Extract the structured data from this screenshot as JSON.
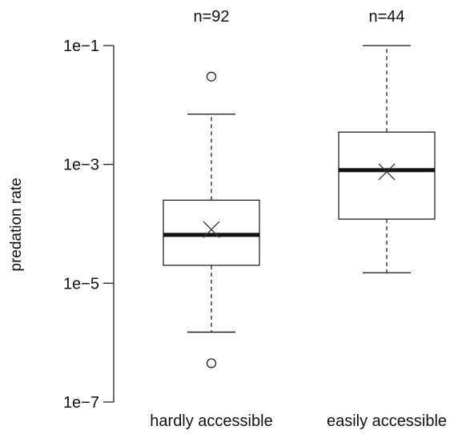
{
  "chart_data": {
    "type": "boxplot",
    "ylabel": "predation rate",
    "y_scale": "log10",
    "ylim": [
      1e-07,
      0.1
    ],
    "yticks": [
      {
        "value": 1e-07,
        "label": "1e−7"
      },
      {
        "value": 1e-05,
        "label": "1e−5"
      },
      {
        "value": 0.001,
        "label": "1e−3"
      },
      {
        "value": 0.1,
        "label": "1e−1"
      }
    ],
    "categories": [
      "hardly accessible",
      "easily accessible"
    ],
    "counts": [
      "n=92",
      "n=44"
    ],
    "boxes": [
      {
        "name": "hardly accessible",
        "n_label": "n=92",
        "whisker_low": 1.5e-06,
        "q1": 2e-05,
        "median": 6.5e-05,
        "q3": 0.00025,
        "whisker_high": 0.007,
        "mean": 8e-05,
        "outliers": [
          0.03,
          4.5e-07
        ]
      },
      {
        "name": "easily accessible",
        "n_label": "n=44",
        "whisker_low": 1.5e-05,
        "q1": 0.00012,
        "median": 0.0008,
        "q3": 0.0035,
        "whisker_high": 0.1,
        "mean": 0.00075,
        "outliers": []
      }
    ]
  },
  "colors": {
    "stroke": "#111111",
    "background": "#ffffff"
  }
}
